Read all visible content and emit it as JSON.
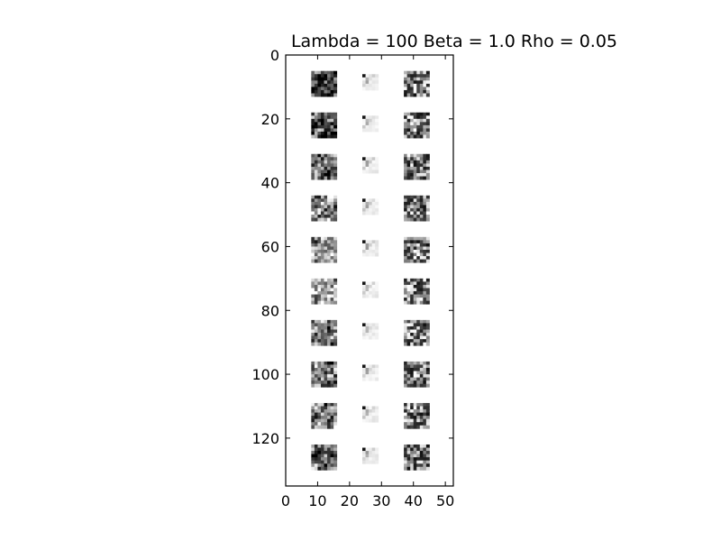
{
  "chart_data": {
    "type": "image",
    "title": "Lambda = 100 Beta = 1.0 Rho = 0.05",
    "xlim": [
      0,
      52.5
    ],
    "ylim": [
      0,
      135
    ],
    "y_inverted": true,
    "xticks": [
      0,
      10,
      20,
      30,
      40,
      50
    ],
    "yticks": [
      0,
      20,
      40,
      60,
      80,
      100,
      120
    ],
    "xtick_labels": [
      "0",
      "10",
      "20",
      "30",
      "40",
      "50"
    ],
    "ytick_labels": [
      "0",
      "20",
      "40",
      "60",
      "80",
      "100",
      "120"
    ],
    "colormap": "gray",
    "grid": {
      "rows": 10,
      "columns": 3,
      "column_titles": [],
      "description": "10 rows of image patches in three columns: left column full-size 8x8 grayscale patches, middle column smaller light reconstructions, right column noisy dark 8x8 patches"
    },
    "patch_size": 8,
    "row_spacing": 13,
    "first_row_y": 5,
    "column_x": [
      8,
      24,
      37
    ]
  },
  "colors": {
    "background": "#ffffff",
    "axes_frame": "#000000"
  }
}
